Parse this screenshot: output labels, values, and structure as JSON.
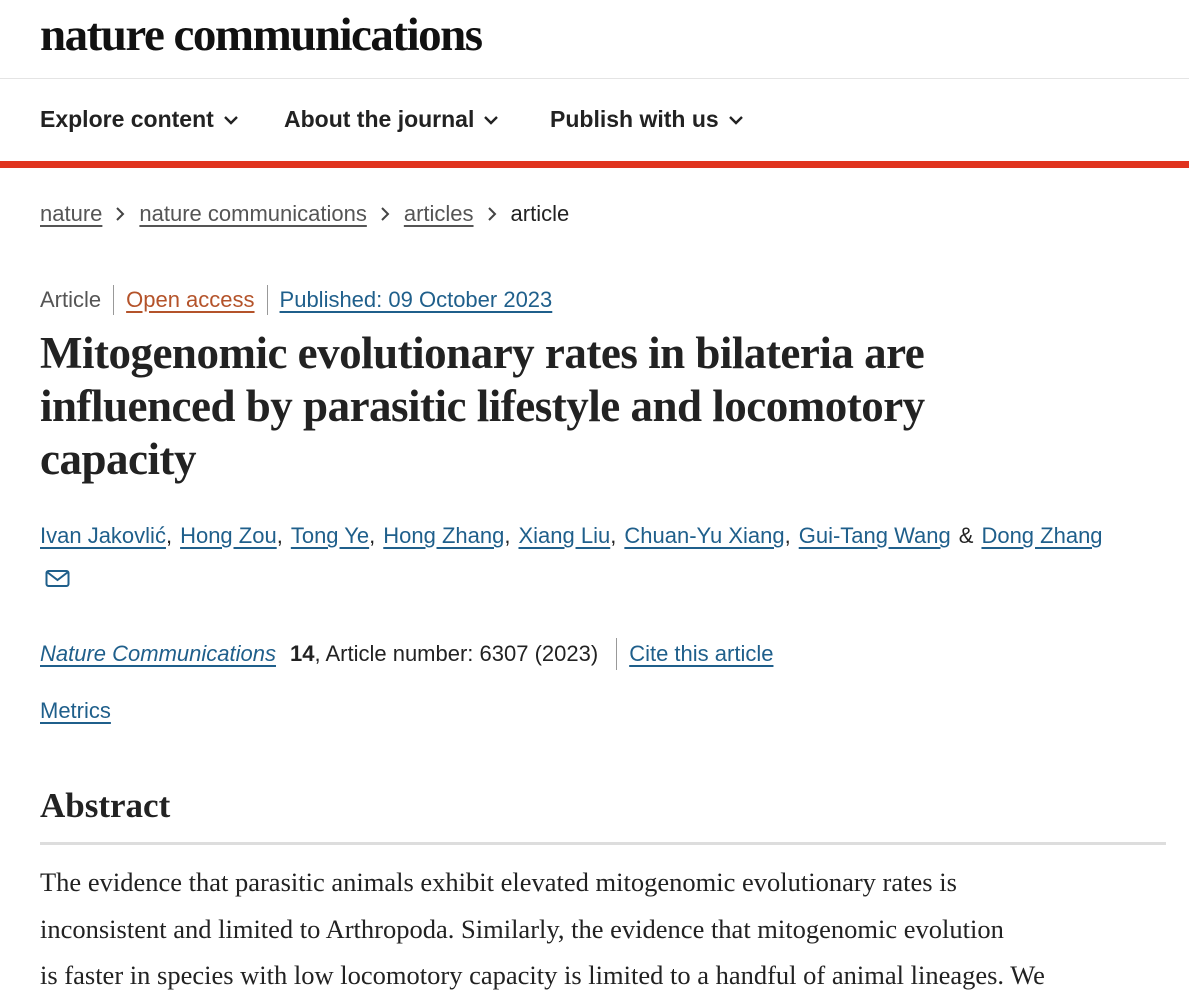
{
  "header": {
    "logo": "nature communications"
  },
  "nav": [
    "Explore content",
    "About the journal",
    "Publish with us"
  ],
  "breadcrumb": [
    "nature",
    "nature communications",
    "articles",
    "article"
  ],
  "meta": {
    "type": "Article",
    "access": "Open access",
    "published": "Published: 09 October 2023"
  },
  "title_lines": [
    "Mitogenomic evolutionary rates in bilateria are",
    "influenced by parasitic lifestyle and locomotory",
    "capacity"
  ],
  "authors": {
    "names": [
      "Ivan Jakovlić",
      "Hong Zou",
      "Tong Ye",
      "Hong Zhang",
      "Xiang Liu",
      "Chuan-Yu Xiang",
      "Gui-Tang Wang",
      "Dong Zhang"
    ],
    "separator": ",",
    "conjunction": "&"
  },
  "citation": {
    "journal": "Nature Communications",
    "volume": "14",
    "details": ", Article number: 6307 (2023)",
    "cite": "Cite this article"
  },
  "metrics": "Metrics",
  "abstract": {
    "heading": "Abstract",
    "lines": [
      "The evidence that parasitic animals exhibit elevated mitogenomic evolutionary rates is",
      "inconsistent and limited to Arthropoda. Similarly, the evidence that mitogenomic evolution",
      "is faster in species with low locomotory capacity is limited to a handful of animal lineages. We"
    ]
  }
}
